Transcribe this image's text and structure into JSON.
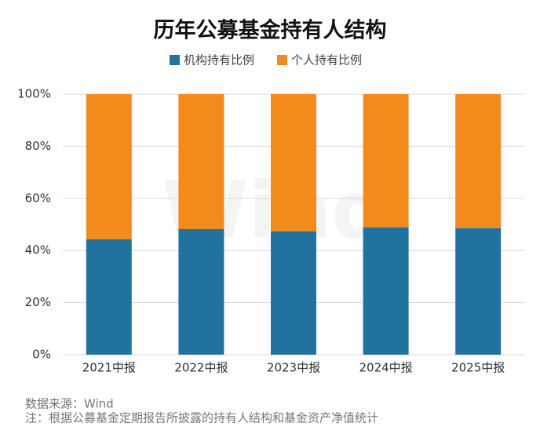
{
  "chart_data": {
    "type": "stacked_bar",
    "title": "历年公募基金持有人结构",
    "categories": [
      "2021中报",
      "2022中报",
      "2023中报",
      "2024中报",
      "2025中报"
    ],
    "series": [
      {
        "name": "机构持有比例",
        "color": "#21729f",
        "values": [
          44.3,
          48.2,
          47.4,
          48.9,
          48.6
        ]
      },
      {
        "name": "个人持有比例",
        "color": "#f28a1c",
        "values": [
          55.7,
          51.8,
          52.6,
          51.1,
          51.4
        ]
      }
    ],
    "ylim": [
      0,
      100
    ],
    "yticks": [
      {
        "value": 0,
        "label": "0%"
      },
      {
        "value": 20,
        "label": "20%"
      },
      {
        "value": 40,
        "label": "40%"
      },
      {
        "value": 60,
        "label": "60%"
      },
      {
        "value": 80,
        "label": "80%"
      },
      {
        "value": 100,
        "label": "100%"
      }
    ],
    "grid": true,
    "watermark": "Wind",
    "source": "数据来源：Wind",
    "note": "注：根据公募基金定期报告所披露的持有人结构和基金资产净值统计"
  }
}
